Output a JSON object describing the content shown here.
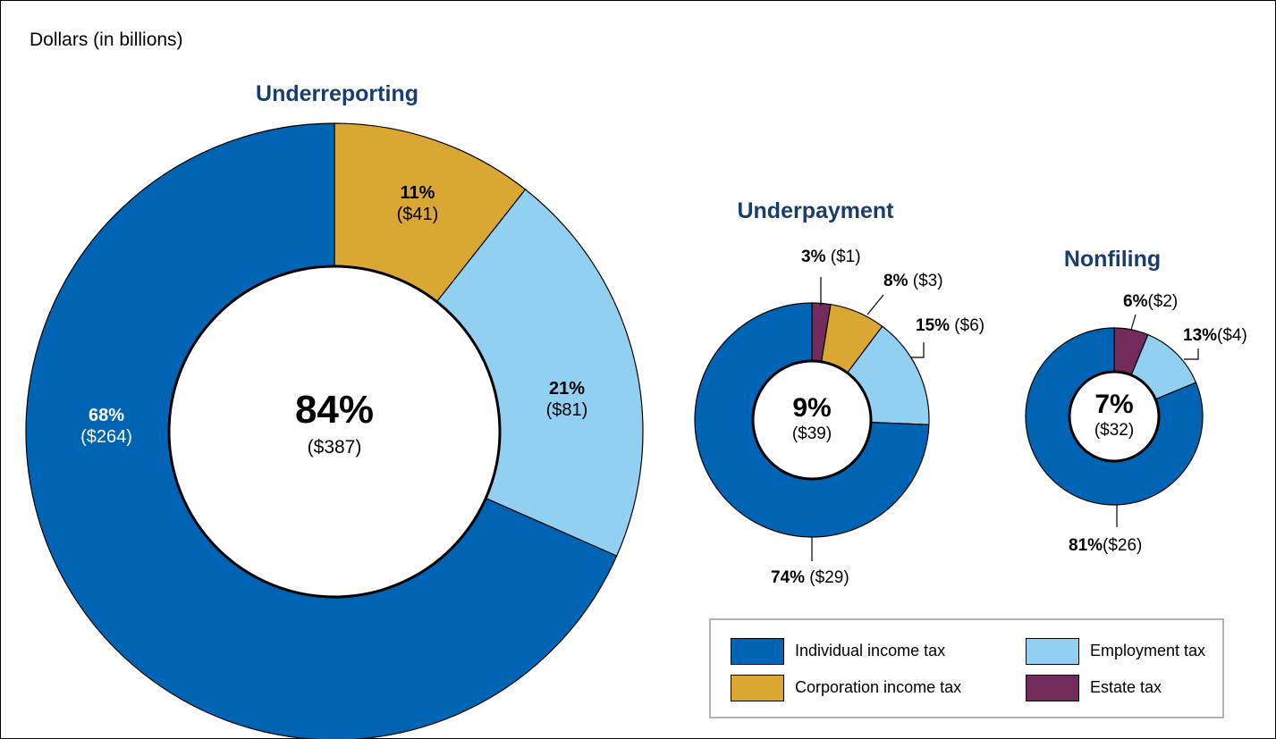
{
  "units_label": "Dollars (in billions)",
  "colors": {
    "individual": "#0064b4",
    "corporation": "#dba733",
    "employment": "#92d0f2",
    "estate": "#722b5c",
    "title": "#1a3c6e"
  },
  "chart_data": [
    {
      "type": "pie",
      "title": "Underreporting",
      "center_pct": "84%",
      "center_amt": "($387)",
      "series": [
        {
          "name": "Estate tax",
          "value": 0,
          "pct_label": "",
          "amt_label": ""
        },
        {
          "name": "Corporation income tax",
          "value": 41,
          "pct_label": "11%",
          "amt_label": "($41)"
        },
        {
          "name": "Employment tax",
          "value": 81,
          "pct_label": "21%",
          "amt_label": "($81)"
        },
        {
          "name": "Individual income tax",
          "value": 264,
          "pct_label": "68%",
          "amt_label": "($264)"
        }
      ]
    },
    {
      "type": "pie",
      "title": "Underpayment",
      "center_pct": "9%",
      "center_amt": "($39)",
      "series": [
        {
          "name": "Estate tax",
          "value": 1,
          "pct_label": "3%",
          "amt_label": "($1)"
        },
        {
          "name": "Corporation income tax",
          "value": 3,
          "pct_label": "8%",
          "amt_label": "($3)"
        },
        {
          "name": "Employment tax",
          "value": 6,
          "pct_label": "15%",
          "amt_label": "($6)"
        },
        {
          "name": "Individual income tax",
          "value": 29,
          "pct_label": "74%",
          "amt_label": "($29)"
        }
      ]
    },
    {
      "type": "pie",
      "title": "Nonfiling",
      "center_pct": "7%",
      "center_amt": "($32)",
      "series": [
        {
          "name": "Estate tax",
          "value": 2,
          "pct_label": "6%",
          "amt_label": "($2)"
        },
        {
          "name": "Employment tax",
          "value": 4,
          "pct_label": "13%",
          "amt_label": "($4)"
        },
        {
          "name": "Individual income tax",
          "value": 26,
          "pct_label": "81%",
          "amt_label": "($26)"
        }
      ]
    }
  ],
  "legend": {
    "individual": "Individual income tax",
    "corporation": "Corporation income tax",
    "employment": "Employment tax",
    "estate": "Estate tax"
  }
}
